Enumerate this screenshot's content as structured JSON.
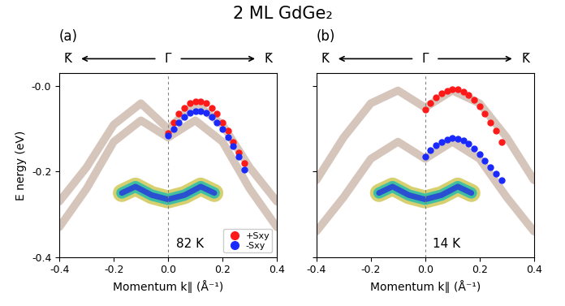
{
  "title": "2 ML GdGe₂",
  "chart_data": [
    {
      "type": "line",
      "title": "(a)",
      "top_labels": [
        "K̄",
        "Γ̄",
        "K̄"
      ],
      "annotations": [
        "82 K"
      ],
      "x_label": "Momentum k∥ (Å⁻¹)",
      "y_label": "E nergy (eV)",
      "xlim": [
        -0.4,
        0.4
      ],
      "ylim": [
        -0.4,
        0.03
      ],
      "xticks": [
        -0.4,
        -0.2,
        0.0,
        0.2,
        0.4
      ],
      "yticks": [
        {
          "value": 0,
          "label": "-0.0"
        },
        -0.2,
        -0.4
      ],
      "vline": 0.0,
      "legend": "lower right",
      "bands": [
        {
          "color": "#8b5a3c",
          "x": [
            -0.4,
            -0.3,
            -0.2,
            -0.1,
            0.0,
            0.1,
            0.2,
            0.3,
            0.4
          ],
          "values": [
            -0.27,
            -0.19,
            -0.09,
            -0.04,
            -0.1,
            -0.04,
            -0.09,
            -0.19,
            -0.27
          ]
        },
        {
          "color": "#8b5a3c",
          "x": [
            -0.4,
            -0.3,
            -0.2,
            -0.1,
            0.0,
            0.1,
            0.2,
            0.3,
            0.4
          ],
          "values": [
            -0.33,
            -0.24,
            -0.13,
            -0.08,
            -0.12,
            -0.08,
            -0.13,
            -0.24,
            -0.33
          ]
        }
      ],
      "blob": {
        "colors": [
          "#d8d070",
          "#40c0a0",
          "#2a4fd0"
        ],
        "x": [
          -0.17,
          -0.12,
          -0.06,
          0.0,
          0.06,
          0.12,
          0.17
        ],
        "values": [
          -0.25,
          -0.235,
          -0.255,
          -0.265,
          -0.255,
          -0.235,
          -0.25
        ]
      },
      "series": [
        {
          "name": "+Sxy",
          "color": "#ff1a1a",
          "marker": "o",
          "x": [
            0.0,
            0.02,
            0.04,
            0.06,
            0.08,
            0.1,
            0.12,
            0.14,
            0.16,
            0.18,
            0.2,
            0.22,
            0.24,
            0.26,
            0.28
          ],
          "values": [
            -0.11,
            -0.085,
            -0.065,
            -0.05,
            -0.04,
            -0.035,
            -0.035,
            -0.04,
            -0.05,
            -0.065,
            -0.085,
            -0.105,
            -0.13,
            -0.155,
            -0.18
          ]
        },
        {
          "name": "-Sxy",
          "color": "#1a2aff",
          "marker": "o",
          "x": [
            0.0,
            0.02,
            0.04,
            0.06,
            0.08,
            0.1,
            0.12,
            0.14,
            0.16,
            0.18,
            0.2,
            0.22,
            0.24,
            0.26,
            0.28
          ],
          "values": [
            -0.115,
            -0.1,
            -0.085,
            -0.072,
            -0.063,
            -0.058,
            -0.058,
            -0.063,
            -0.072,
            -0.085,
            -0.1,
            -0.12,
            -0.14,
            -0.165,
            -0.195
          ]
        }
      ]
    },
    {
      "type": "line",
      "title": "(b)",
      "top_labels": [
        "K̄",
        "Γ̄",
        "K̄"
      ],
      "annotations": [
        "14 K"
      ],
      "x_label": "Momentum k∥ (Å⁻¹)",
      "tick_labels": "x",
      "xlim": [
        -0.4,
        0.4
      ],
      "ylim": [
        -0.4,
        0.03
      ],
      "xticks": [
        -0.4,
        -0.2,
        0.0,
        0.2,
        0.4
      ],
      "yticks": [
        0,
        -0.2,
        -0.4
      ],
      "vline": 0.0,
      "bands": [
        {
          "color": "#8b5a3c",
          "x": [
            -0.4,
            -0.3,
            -0.2,
            -0.1,
            0.0,
            0.1,
            0.2,
            0.3,
            0.4
          ],
          "values": [
            -0.22,
            -0.12,
            -0.04,
            -0.01,
            -0.05,
            -0.01,
            -0.04,
            -0.12,
            -0.22
          ]
        },
        {
          "color": "#8b5a3c",
          "x": [
            -0.4,
            -0.3,
            -0.2,
            -0.1,
            0.0,
            0.1,
            0.2,
            0.3,
            0.4
          ],
          "values": [
            -0.34,
            -0.26,
            -0.17,
            -0.13,
            -0.17,
            -0.13,
            -0.17,
            -0.26,
            -0.34
          ]
        }
      ],
      "blob": {
        "colors": [
          "#d8d070",
          "#40c0a0",
          "#2a4fd0"
        ],
        "x": [
          -0.17,
          -0.12,
          -0.06,
          0.0,
          0.06,
          0.12,
          0.17
        ],
        "values": [
          -0.25,
          -0.235,
          -0.255,
          -0.265,
          -0.255,
          -0.235,
          -0.25
        ]
      },
      "series": [
        {
          "name": "+Sxy",
          "color": "#ff1a1a",
          "marker": "o",
          "x": [
            0.0,
            0.02,
            0.04,
            0.06,
            0.08,
            0.1,
            0.12,
            0.14,
            0.16,
            0.18,
            0.2,
            0.22,
            0.24,
            0.26,
            0.28
          ],
          "values": [
            -0.055,
            -0.04,
            -0.027,
            -0.017,
            -0.01,
            -0.007,
            -0.007,
            -0.012,
            -0.02,
            -0.032,
            -0.047,
            -0.065,
            -0.085,
            -0.105,
            -0.13
          ]
        },
        {
          "name": "-Sxy",
          "color": "#1a2aff",
          "marker": "o",
          "x": [
            0.0,
            0.02,
            0.04,
            0.06,
            0.08,
            0.1,
            0.12,
            0.14,
            0.16,
            0.18,
            0.2,
            0.22,
            0.24,
            0.26,
            0.28
          ],
          "values": [
            -0.165,
            -0.15,
            -0.138,
            -0.13,
            -0.125,
            -0.122,
            -0.123,
            -0.127,
            -0.135,
            -0.146,
            -0.16,
            -0.175,
            -0.19,
            -0.205,
            -0.22
          ]
        }
      ]
    }
  ]
}
